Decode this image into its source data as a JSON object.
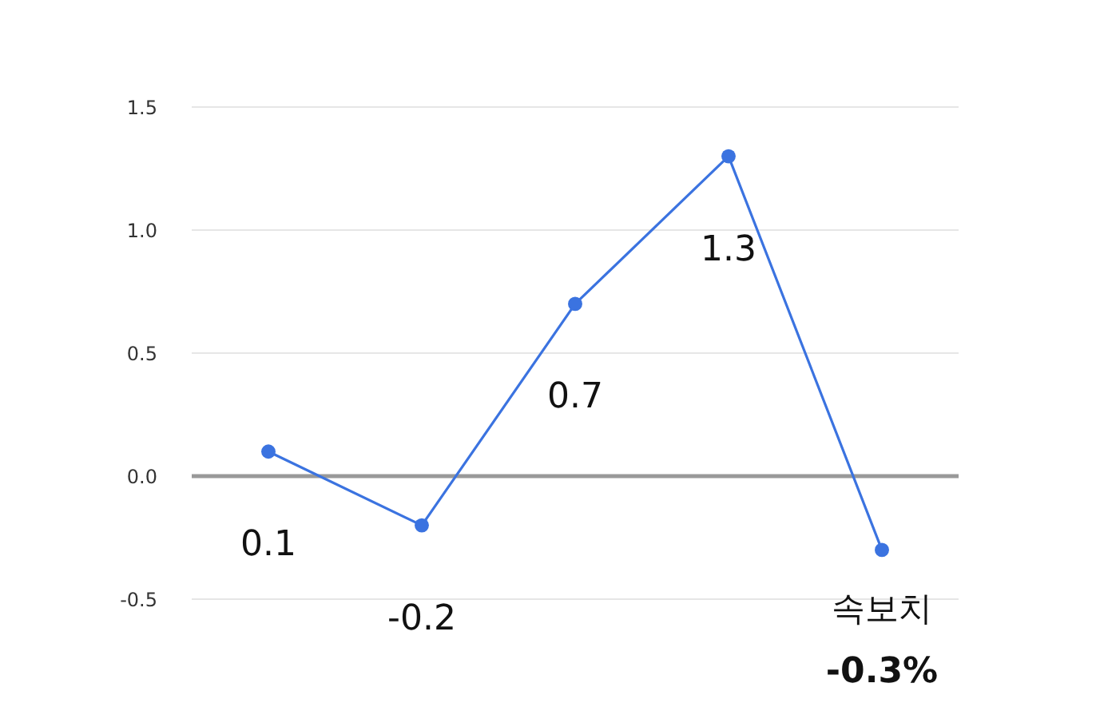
{
  "chart_data": {
    "type": "line",
    "categories": [
      null,
      null,
      null,
      null,
      null
    ],
    "series": [
      {
        "color": "#3b73e0",
        "values": [
          0.1,
          -0.2,
          0.7,
          1.3,
          -0.3
        ],
        "value_labels": [
          "0.1",
          "-0.2",
          "0.7",
          "1.3",
          "-0.3%"
        ]
      }
    ],
    "annotations": [
      {
        "text": "속보치",
        "y": -0.3
      }
    ],
    "ylim": [
      -0.5,
      1.5
    ],
    "yticks": [
      {
        "value": -0.5,
        "label": "-0.5"
      },
      {
        "value": 0,
        "label": "0.0"
      },
      {
        "value": 0.5,
        "label": "0.5"
      },
      {
        "value": 1,
        "label": "1.0"
      },
      {
        "value": 1.5,
        "label": "1.5"
      }
    ],
    "ref_lines": [
      {
        "axis": "y",
        "value": 0,
        "color": "#999999"
      }
    ],
    "grid": "y",
    "marker": "circle",
    "line_style": "solid"
  }
}
